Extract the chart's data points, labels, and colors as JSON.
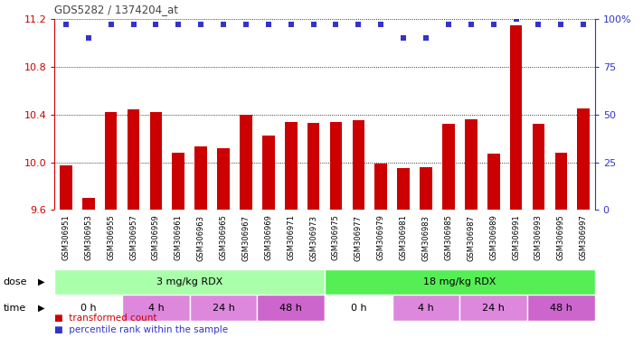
{
  "title": "GDS5282 / 1374204_at",
  "categories": [
    "GSM306951",
    "GSM306953",
    "GSM306955",
    "GSM306957",
    "GSM306959",
    "GSM306961",
    "GSM306963",
    "GSM306965",
    "GSM306967",
    "GSM306969",
    "GSM306971",
    "GSM306973",
    "GSM306975",
    "GSM306977",
    "GSM306979",
    "GSM306981",
    "GSM306983",
    "GSM306985",
    "GSM306987",
    "GSM306989",
    "GSM306991",
    "GSM306993",
    "GSM306995",
    "GSM306997"
  ],
  "bar_values": [
    9.97,
    9.7,
    10.42,
    10.44,
    10.42,
    10.08,
    10.13,
    10.12,
    10.4,
    10.22,
    10.34,
    10.33,
    10.34,
    10.35,
    9.99,
    9.95,
    9.96,
    10.32,
    10.36,
    10.07,
    11.15,
    10.32,
    10.08,
    10.45
  ],
  "percentile_values": [
    97,
    90,
    97,
    97,
    97,
    97,
    97,
    97,
    97,
    97,
    97,
    97,
    97,
    97,
    97,
    90,
    90,
    97,
    97,
    97,
    100,
    97,
    97,
    97
  ],
  "ylim_left": [
    9.6,
    11.2
  ],
  "ylim_right": [
    0,
    100
  ],
  "yticks_left": [
    9.6,
    10.0,
    10.4,
    10.8,
    11.2
  ],
  "yticks_right": [
    0,
    25,
    50,
    75,
    100
  ],
  "bar_color": "#cc0000",
  "dot_color": "#3333cc",
  "dose_groups": [
    {
      "label": "3 mg/kg RDX",
      "start": 0,
      "end": 12,
      "color": "#aaffaa"
    },
    {
      "label": "18 mg/kg RDX",
      "start": 12,
      "end": 24,
      "color": "#55ee55"
    }
  ],
  "time_groups": [
    {
      "label": "0 h",
      "start": 0,
      "end": 3,
      "color": "#ffffff"
    },
    {
      "label": "4 h",
      "start": 3,
      "end": 6,
      "color": "#dd88dd"
    },
    {
      "label": "24 h",
      "start": 6,
      "end": 9,
      "color": "#dd88dd"
    },
    {
      "label": "48 h",
      "start": 9,
      "end": 12,
      "color": "#cc66cc"
    },
    {
      "label": "0 h",
      "start": 12,
      "end": 15,
      "color": "#ffffff"
    },
    {
      "label": "4 h",
      "start": 15,
      "end": 18,
      "color": "#dd88dd"
    },
    {
      "label": "24 h",
      "start": 18,
      "end": 21,
      "color": "#dd88dd"
    },
    {
      "label": "48 h",
      "start": 21,
      "end": 24,
      "color": "#cc66cc"
    }
  ],
  "dose_label": "dose",
  "time_label": "time",
  "legend_bar": "transformed count",
  "legend_dot": "percentile rank within the sample",
  "bg_color": "#ffffff",
  "xtick_bg": "#d8d8d8",
  "axis_color_left": "#cc0000",
  "axis_color_right": "#3333cc",
  "title_color": "#444444"
}
